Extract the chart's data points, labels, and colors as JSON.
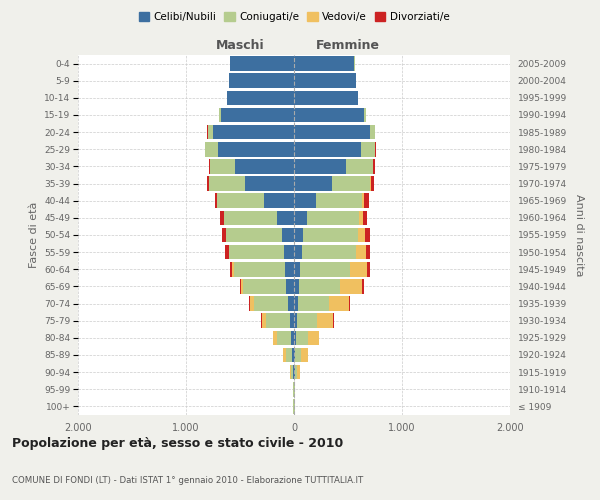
{
  "age_groups": [
    "100+",
    "95-99",
    "90-94",
    "85-89",
    "80-84",
    "75-79",
    "70-74",
    "65-69",
    "60-64",
    "55-59",
    "50-54",
    "45-49",
    "40-44",
    "35-39",
    "30-34",
    "25-29",
    "20-24",
    "15-19",
    "10-14",
    "5-9",
    "0-4"
  ],
  "birth_years": [
    "≤ 1909",
    "1910-1914",
    "1915-1919",
    "1920-1924",
    "1925-1929",
    "1930-1934",
    "1935-1939",
    "1940-1944",
    "1945-1949",
    "1950-1954",
    "1955-1959",
    "1960-1964",
    "1965-1969",
    "1970-1974",
    "1975-1979",
    "1980-1984",
    "1985-1989",
    "1990-1994",
    "1995-1999",
    "2000-2004",
    "2005-2009"
  ],
  "males": {
    "celibi": [
      2,
      3,
      8,
      15,
      25,
      35,
      55,
      70,
      80,
      90,
      110,
      160,
      280,
      450,
      550,
      700,
      750,
      680,
      620,
      600,
      590
    ],
    "coniugati": [
      3,
      5,
      20,
      60,
      130,
      220,
      320,
      400,
      480,
      510,
      520,
      490,
      430,
      340,
      230,
      120,
      50,
      15,
      5,
      2,
      1
    ],
    "vedovi": [
      1,
      3,
      10,
      25,
      40,
      45,
      30,
      20,
      10,
      5,
      3,
      2,
      1,
      0,
      0,
      0,
      0,
      0,
      0,
      0,
      0
    ],
    "divorziati": [
      0,
      0,
      1,
      2,
      3,
      5,
      8,
      10,
      20,
      30,
      35,
      30,
      25,
      20,
      10,
      5,
      2,
      1,
      0,
      0,
      0
    ]
  },
  "females": {
    "nubili": [
      2,
      3,
      8,
      12,
      18,
      25,
      38,
      50,
      60,
      70,
      85,
      120,
      200,
      350,
      480,
      620,
      700,
      650,
      590,
      570,
      560
    ],
    "coniugate": [
      3,
      5,
      20,
      55,
      110,
      190,
      290,
      380,
      460,
      500,
      510,
      480,
      430,
      350,
      250,
      130,
      50,
      15,
      5,
      2,
      1
    ],
    "vedove": [
      2,
      5,
      25,
      60,
      100,
      150,
      180,
      200,
      160,
      100,
      60,
      35,
      20,
      10,
      5,
      2,
      1,
      0,
      0,
      0,
      0
    ],
    "divorziate": [
      0,
      0,
      1,
      2,
      4,
      6,
      10,
      15,
      25,
      35,
      45,
      45,
      40,
      30,
      15,
      5,
      2,
      1,
      0,
      0,
      0
    ]
  },
  "colors": {
    "celibi": "#3d6fa0",
    "coniugati": "#b5cc8e",
    "vedovi": "#f0c060",
    "divorziati": "#cc2222"
  },
  "xlim": 2000,
  "title": "Popolazione per età, sesso e stato civile - 2010",
  "subtitle": "COMUNE DI FONDI (LT) - Dati ISTAT 1° gennaio 2010 - Elaborazione TUTTITALIA.IT",
  "ylabel_left": "Fasce di età",
  "ylabel_right": "Anni di nascita",
  "xlabel_maschi": "Maschi",
  "xlabel_femmine": "Femmine",
  "bg_color": "#f0f0eb",
  "plot_bg": "#ffffff"
}
